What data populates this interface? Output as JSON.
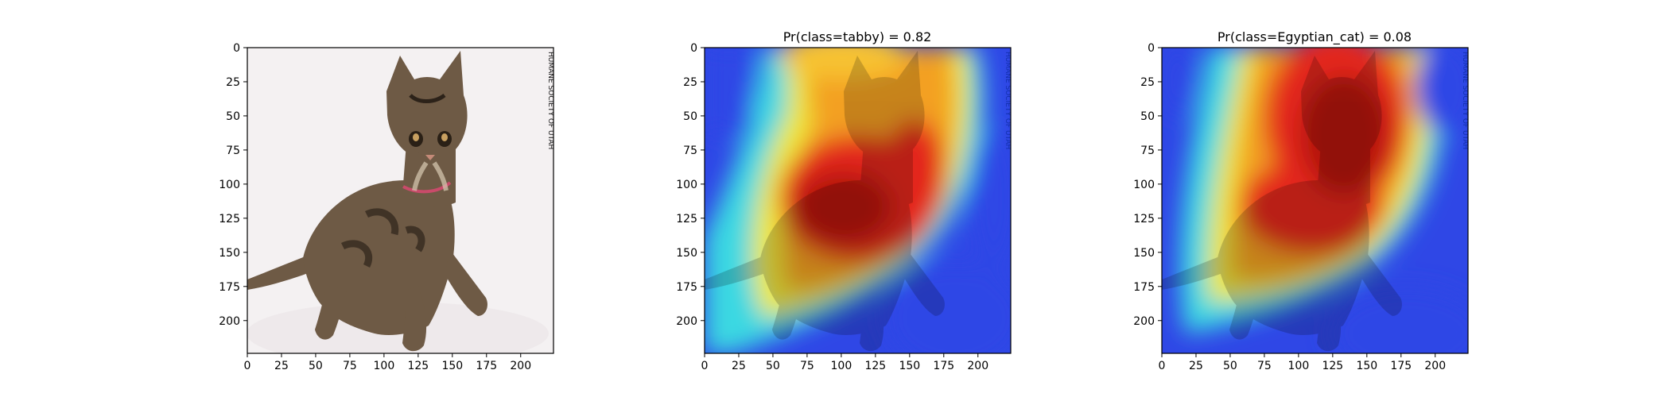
{
  "chart_data": [
    {
      "type": "image",
      "title": "",
      "xlim": [
        0,
        224
      ],
      "ylim": [
        224,
        0
      ],
      "xticks": [
        "0",
        "25",
        "50",
        "75",
        "100",
        "125",
        "150",
        "175",
        "200"
      ],
      "yticks": [
        "0",
        "25",
        "50",
        "75",
        "100",
        "125",
        "150",
        "175",
        "200"
      ],
      "tick_values": [
        0,
        25,
        50,
        75,
        100,
        125,
        150,
        175,
        200
      ],
      "image_content": "tabby kitten on white background",
      "watermark": "HUMANE SOCIETY OF UTAH"
    },
    {
      "type": "heatmap",
      "title": "Pr(class=tabby) =  0.82",
      "class": "tabby",
      "probability": 0.82,
      "xlim": [
        0,
        224
      ],
      "ylim": [
        224,
        0
      ],
      "xticks": [
        "0",
        "25",
        "50",
        "75",
        "100",
        "125",
        "150",
        "175",
        "200"
      ],
      "yticks": [
        "0",
        "25",
        "50",
        "75",
        "100",
        "125",
        "150",
        "175",
        "200"
      ],
      "tick_values": [
        0,
        25,
        50,
        75,
        100,
        125,
        150,
        175,
        200
      ],
      "colormap": "jet",
      "hotspots": [
        {
          "x": 105,
          "y": 105,
          "intensity": 1.0
        },
        {
          "x": 150,
          "y": 100,
          "intensity": 0.9
        },
        {
          "x": 125,
          "y": 20,
          "intensity": 0.75
        },
        {
          "x": 80,
          "y": 160,
          "intensity": 0.6
        }
      ]
    },
    {
      "type": "heatmap",
      "title": "Pr(class=Egyptian_cat) =  0.08",
      "class": "Egyptian_cat",
      "probability": 0.08,
      "xlim": [
        0,
        224
      ],
      "ylim": [
        224,
        0
      ],
      "xticks": [
        "0",
        "25",
        "50",
        "75",
        "100",
        "125",
        "150",
        "175",
        "200"
      ],
      "yticks": [
        "0",
        "25",
        "50",
        "75",
        "100",
        "125",
        "150",
        "175",
        "200"
      ],
      "tick_values": [
        0,
        25,
        50,
        75,
        100,
        125,
        150,
        175,
        200
      ],
      "colormap": "jet",
      "hotspots": [
        {
          "x": 120,
          "y": 60,
          "intensity": 1.0
        },
        {
          "x": 110,
          "y": 120,
          "intensity": 0.95
        },
        {
          "x": 80,
          "y": 20,
          "intensity": 0.85
        },
        {
          "x": 70,
          "y": 160,
          "intensity": 0.55
        }
      ]
    }
  ],
  "colors": {
    "jet_blue": "#2a2fe0",
    "jet_cyan": "#2fd6f0",
    "jet_yellow": "#f2e93a",
    "jet_red": "#e0201a",
    "background": "#f4f1f2"
  }
}
